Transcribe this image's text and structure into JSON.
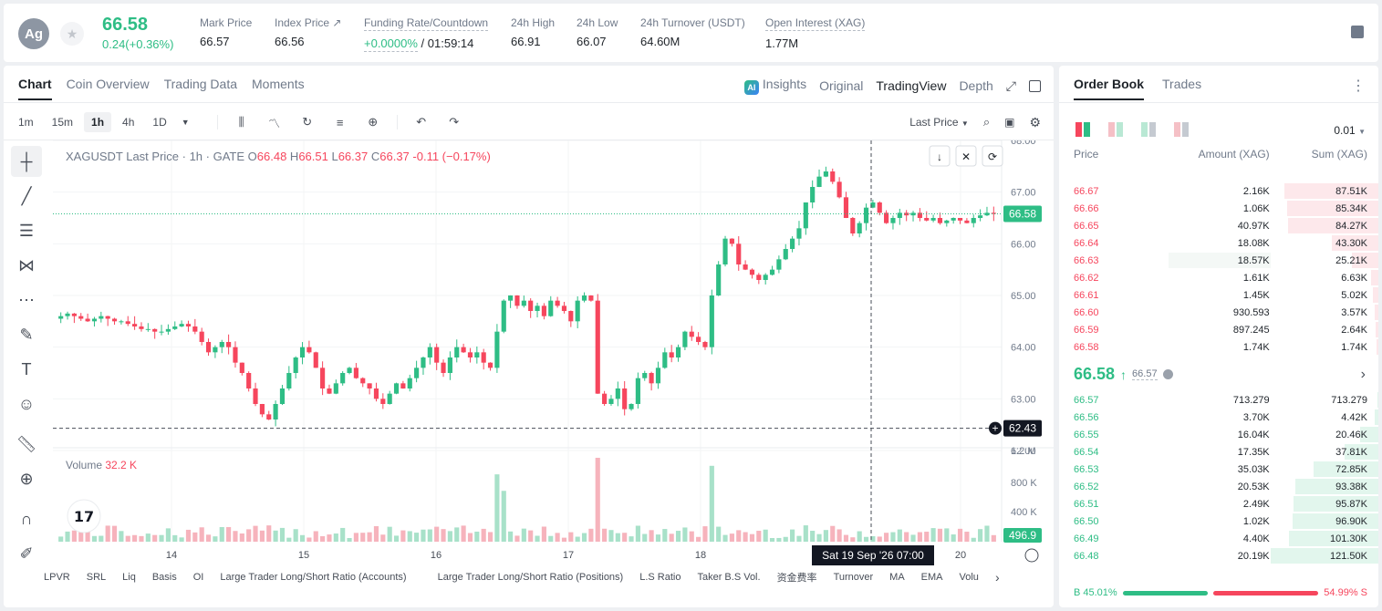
{
  "header": {
    "avatar": "Ag",
    "last_price": "66.58",
    "change": "0.24(+0.36%)",
    "stats": [
      {
        "label": "Mark Price",
        "value": "66.57"
      },
      {
        "label": "Index Price ↗",
        "value": "66.56"
      },
      {
        "label": "Funding Rate/Countdown",
        "value_green": "+0.0000%",
        "value": "/ 01:59:14"
      },
      {
        "label": "24h High",
        "value": "66.91"
      },
      {
        "label": "24h Low",
        "value": "66.07"
      },
      {
        "label": "24h Turnover (USDT)",
        "value": "64.60M"
      },
      {
        "label": "Open Interest (XAG)",
        "value": "1.77M"
      }
    ]
  },
  "chart_tabs": [
    "Chart",
    "Coin Overview",
    "Trading Data",
    "Moments"
  ],
  "view_tabs": {
    "insights": "Insights",
    "original": "Original",
    "tradingview": "TradingView",
    "depth": "Depth"
  },
  "timeframes": [
    "1m",
    "15m",
    "1h",
    "4h",
    "1D"
  ],
  "active_timeframe": "1h",
  "price_type": "Last Price",
  "legend": {
    "symbol": "XAGUSDT Last Price · 1h · GATE",
    "o_label": "O",
    "o": "66.48",
    "h_label": "H",
    "h": "66.51",
    "l_label": "L",
    "l": "66.37",
    "c_label": "C",
    "c": "66.37",
    "chg": "-0.11 (−0.17%)"
  },
  "volume_legend": {
    "label": "Volume",
    "value": "32.2 K"
  },
  "chart_data": {
    "type": "candlestick",
    "y_ticks": [
      "68.00",
      "67.00",
      "66.00",
      "65.00",
      "64.00",
      "63.00",
      "62.00"
    ],
    "ylim": [
      62,
      68
    ],
    "volume_ticks": [
      "1.2 M",
      "800 K",
      "400 K"
    ],
    "x_ticks": [
      "14",
      "15",
      "16",
      "17",
      "18",
      "20"
    ],
    "current_price_label": "66.58",
    "crosshair_price_label": "62.43",
    "crosshair_time_label": "Sat 19 Sep '26   07:00",
    "volume_last_label": "496.9",
    "close_path": [
      64.6,
      64.65,
      64.6,
      64.55,
      64.5,
      64.55,
      64.6,
      64.55,
      64.5,
      64.5,
      64.45,
      64.4,
      64.35,
      64.35,
      64.3,
      64.3,
      64.35,
      64.4,
      64.45,
      64.4,
      64.3,
      64.1,
      63.9,
      64.0,
      64.1,
      64.0,
      63.7,
      63.5,
      63.2,
      62.9,
      62.7,
      62.6,
      62.9,
      63.2,
      63.5,
      63.8,
      64.0,
      63.9,
      63.6,
      63.2,
      63.1,
      63.3,
      63.5,
      63.6,
      63.4,
      63.3,
      63.2,
      63.0,
      62.9,
      63.1,
      63.3,
      63.2,
      63.4,
      63.6,
      63.8,
      64.0,
      63.7,
      63.5,
      63.8,
      64.0,
      63.9,
      63.8,
      63.9,
      63.7,
      63.6,
      64.3,
      64.9,
      65.0,
      64.8,
      64.9,
      64.7,
      64.8,
      64.6,
      64.9,
      64.8,
      64.7,
      64.5,
      64.9,
      65.0,
      64.9,
      63.1,
      62.9,
      63.0,
      63.2,
      62.8,
      62.9,
      63.4,
      63.5,
      63.3,
      63.6,
      63.9,
      63.8,
      64.0,
      64.3,
      64.2,
      64.1,
      64.0,
      65.0,
      65.6,
      66.1,
      66.0,
      65.6,
      65.5,
      65.4,
      65.3,
      65.4,
      65.5,
      65.7,
      65.9,
      66.1,
      66.3,
      66.8,
      67.1,
      67.3,
      67.4,
      67.2,
      66.9,
      66.5,
      66.2,
      66.4,
      66.7,
      66.8,
      66.6,
      66.4,
      66.5,
      66.6,
      66.55,
      66.6,
      66.5,
      66.45,
      66.5,
      66.4,
      66.45,
      66.5,
      66.45,
      66.4,
      66.5,
      66.55,
      66.6,
      66.58
    ]
  },
  "bottom_indicators": [
    "LPVR",
    "SRL",
    "Liq",
    "Basis",
    "OI",
    "Large Trader Long/Short Ratio (Accounts)",
    "Large Trader Long/Short Ratio (Positions)",
    "L.S Ratio",
    "Taker B.S Vol.",
    "资金费率",
    "Turnover",
    "MA",
    "EMA",
    "Volu"
  ],
  "orderbook": {
    "tabs": [
      "Order Book",
      "Trades"
    ],
    "precision": "0.01",
    "headers": [
      "Price",
      "Amount (XAG)",
      "Sum (XAG)"
    ],
    "asks": [
      {
        "price": "66.67",
        "amount": "2.16K",
        "sum": "87.51K",
        "depth": 0.87,
        "amt_depth": 0.0
      },
      {
        "price": "66.66",
        "amount": "1.06K",
        "sum": "85.34K",
        "depth": 0.85,
        "amt_depth": 0.0
      },
      {
        "price": "66.65",
        "amount": "40.97K",
        "sum": "84.27K",
        "depth": 0.84,
        "amt_depth": 0.0
      },
      {
        "price": "66.64",
        "amount": "18.08K",
        "sum": "43.30K",
        "depth": 0.43,
        "amt_depth": 0.0
      },
      {
        "price": "66.63",
        "amount": "18.57K",
        "sum": "25.21K",
        "depth": 0.25,
        "amt_depth": 0.7
      },
      {
        "price": "66.62",
        "amount": "1.61K",
        "sum": "6.63K",
        "depth": 0.07,
        "amt_depth": 0.0
      },
      {
        "price": "66.61",
        "amount": "1.45K",
        "sum": "5.02K",
        "depth": 0.05,
        "amt_depth": 0.0
      },
      {
        "price": "66.60",
        "amount": "930.593",
        "sum": "3.57K",
        "depth": 0.035,
        "amt_depth": 0.0
      },
      {
        "price": "66.59",
        "amount": "897.245",
        "sum": "2.64K",
        "depth": 0.026,
        "amt_depth": 0.0
      },
      {
        "price": "66.58",
        "amount": "1.74K",
        "sum": "1.74K",
        "depth": 0.017,
        "amt_depth": 0.0
      }
    ],
    "mid_price": "66.58",
    "mid_mark": "66.57",
    "bids": [
      {
        "price": "66.57",
        "amount": "713.279",
        "sum": "713.279",
        "depth": 0.006
      },
      {
        "price": "66.56",
        "amount": "3.70K",
        "sum": "4.42K",
        "depth": 0.036
      },
      {
        "price": "66.55",
        "amount": "16.04K",
        "sum": "20.46K",
        "depth": 0.17
      },
      {
        "price": "66.54",
        "amount": "17.35K",
        "sum": "37.81K",
        "depth": 0.31
      },
      {
        "price": "66.53",
        "amount": "35.03K",
        "sum": "72.85K",
        "depth": 0.6
      },
      {
        "price": "66.52",
        "amount": "20.53K",
        "sum": "93.38K",
        "depth": 0.77
      },
      {
        "price": "66.51",
        "amount": "2.49K",
        "sum": "95.87K",
        "depth": 0.79
      },
      {
        "price": "66.50",
        "amount": "1.02K",
        "sum": "96.90K",
        "depth": 0.8
      },
      {
        "price": "66.49",
        "amount": "4.40K",
        "sum": "101.30K",
        "depth": 0.83
      },
      {
        "price": "66.48",
        "amount": "20.19K",
        "sum": "121.50K",
        "depth": 1.0
      }
    ],
    "buy_ratio": "B 45.01%",
    "sell_ratio": "54.99% S",
    "buy_fraction": 0.4501
  },
  "colors": {
    "up": "#2ebd85",
    "down": "#f6465d"
  }
}
